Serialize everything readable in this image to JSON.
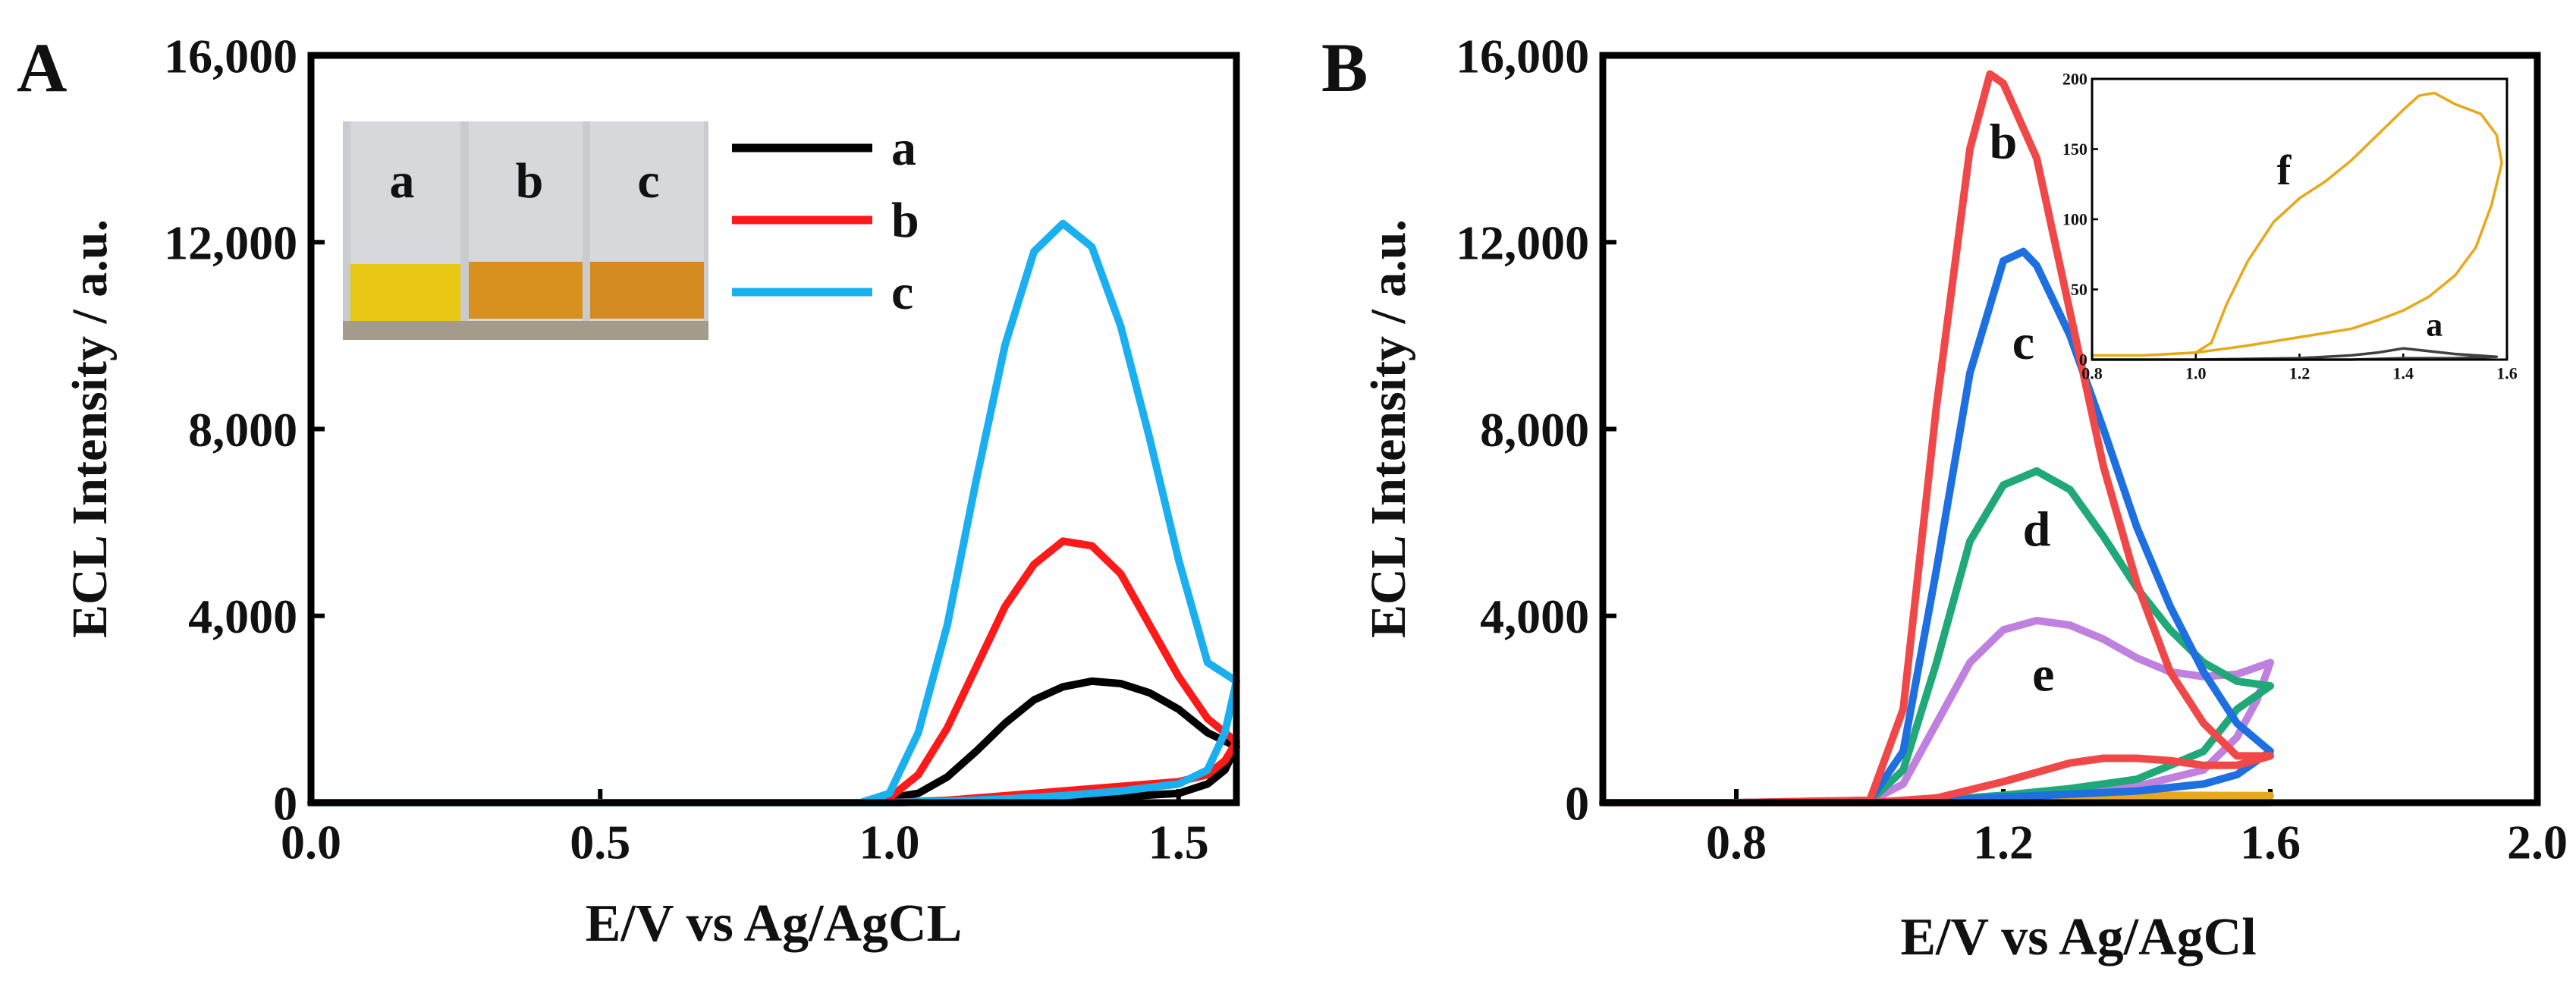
{
  "chart_data": [
    {
      "panel": "A",
      "type": "line",
      "xlabel": "E/V vs Ag/AgCL",
      "ylabel": "ECL Intensity / a.u.",
      "xlim": [
        0,
        1.6
      ],
      "ylim": [
        0,
        16000
      ],
      "xticks": [
        {
          "value": 0,
          "label": "0.0"
        },
        {
          "value": 0.5,
          "label": "0.5"
        },
        {
          "value": 1.0,
          "label": "1.0"
        },
        {
          "value": 1.5,
          "label": "1.5"
        }
      ],
      "yticks": [
        {
          "value": 0,
          "label": "0"
        },
        {
          "value": 4000,
          "label": "4,000"
        },
        {
          "value": 8000,
          "label": "8,000"
        },
        {
          "value": 12000,
          "label": "12,000"
        },
        {
          "value": 16000,
          "label": "16,000"
        }
      ],
      "legend": [
        {
          "name": "a",
          "color": "#000000"
        },
        {
          "name": "b",
          "color": "#ff1a1a"
        },
        {
          "name": "c",
          "color": "#1ab0f0"
        }
      ],
      "inset_photo": {
        "labels": [
          "a",
          "b",
          "c"
        ],
        "colors": [
          "#e8c814",
          "#d8901e",
          "#d48a20"
        ]
      },
      "series": [
        {
          "name": "a",
          "color": "#000000",
          "x": [
            0,
            0.25,
            0.5,
            0.75,
            0.95,
            1.05,
            1.1,
            1.15,
            1.2,
            1.25,
            1.3,
            1.35,
            1.4,
            1.45,
            1.5,
            1.55,
            1.6,
            1.58,
            1.55,
            1.5,
            1.4,
            1.3,
            1.2,
            1.1,
            1.0,
            0.8,
            0.5,
            0.25,
            0
          ],
          "y": [
            0,
            0,
            0,
            0,
            0,
            200,
            550,
            1100,
            1700,
            2200,
            2480,
            2600,
            2550,
            2350,
            2000,
            1500,
            1200,
            700,
            400,
            200,
            130,
            100,
            60,
            20,
            0,
            0,
            0,
            0,
            0
          ]
        },
        {
          "name": "b",
          "color": "#ff1a1a",
          "x": [
            0,
            0.25,
            0.5,
            0.75,
            0.95,
            1.0,
            1.05,
            1.1,
            1.15,
            1.2,
            1.25,
            1.3,
            1.35,
            1.4,
            1.45,
            1.5,
            1.55,
            1.6,
            1.58,
            1.55,
            1.5,
            1.4,
            1.3,
            1.2,
            1.1,
            1.0,
            0.8,
            0.5,
            0.25,
            0
          ],
          "y": [
            0,
            0,
            0,
            0,
            0,
            100,
            600,
            1600,
            2900,
            4200,
            5100,
            5600,
            5500,
            4900,
            3800,
            2700,
            1800,
            1300,
            900,
            600,
            450,
            350,
            250,
            150,
            50,
            0,
            0,
            0,
            0,
            0
          ]
        },
        {
          "name": "c",
          "color": "#1ab0f0",
          "x": [
            0,
            0.25,
            0.5,
            0.75,
            0.95,
            1.0,
            1.05,
            1.1,
            1.15,
            1.2,
            1.25,
            1.3,
            1.35,
            1.4,
            1.45,
            1.5,
            1.55,
            1.6,
            1.58,
            1.55,
            1.5,
            1.4,
            1.3,
            1.2,
            1.1,
            1.0,
            0.8,
            0.5,
            0.25,
            0
          ],
          "y": [
            0,
            0,
            0,
            0,
            0,
            200,
            1500,
            3800,
            6900,
            9800,
            11800,
            12400,
            11900,
            10200,
            7800,
            5200,
            3000,
            2600,
            1500,
            700,
            400,
            250,
            150,
            80,
            30,
            0,
            0,
            0,
            0,
            0
          ]
        }
      ]
    },
    {
      "panel": "B",
      "type": "line",
      "xlabel": "E/V vs Ag/AgCl",
      "ylabel": "ECL Intensity / a.u.",
      "xlim": [
        0.6,
        2.0
      ],
      "ylim": [
        0,
        16000
      ],
      "xticks": [
        {
          "value": 0.8,
          "label": "0.8"
        },
        {
          "value": 1.2,
          "label": "1.2"
        },
        {
          "value": 1.6,
          "label": "1.6"
        },
        {
          "value": 2.0,
          "label": "2.0"
        }
      ],
      "yticks": [
        {
          "value": 0,
          "label": "0"
        },
        {
          "value": 4000,
          "label": "4,000"
        },
        {
          "value": 8000,
          "label": "8,000"
        },
        {
          "value": 12000,
          "label": "12,000"
        },
        {
          "value": 16000,
          "label": "16,000"
        }
      ],
      "curve_labels": [
        {
          "text": "b",
          "x": 1.2,
          "y": 13800
        },
        {
          "text": "c",
          "x": 1.23,
          "y": 9500
        },
        {
          "text": "d",
          "x": 1.25,
          "y": 5500
        },
        {
          "text": "e",
          "x": 1.26,
          "y": 2400
        }
      ],
      "series": [
        {
          "name": "b",
          "color": "#f04848",
          "x": [
            0.6,
            0.8,
            1.0,
            1.05,
            1.1,
            1.15,
            1.18,
            1.2,
            1.25,
            1.3,
            1.35,
            1.4,
            1.45,
            1.5,
            1.55,
            1.6,
            1.55,
            1.5,
            1.45,
            1.4,
            1.35,
            1.3,
            1.2,
            1.1,
            1.0,
            0.8,
            0.6
          ],
          "y": [
            0,
            0,
            50,
            2000,
            8500,
            14000,
            15600,
            15400,
            13800,
            10500,
            7200,
            4700,
            2800,
            1700,
            1000,
            1000,
            800,
            800,
            900,
            950,
            950,
            850,
            450,
            100,
            0,
            0,
            0
          ]
        },
        {
          "name": "c",
          "color": "#1e70e0",
          "x": [
            0.6,
            0.8,
            1.0,
            1.05,
            1.1,
            1.15,
            1.2,
            1.23,
            1.25,
            1.3,
            1.35,
            1.4,
            1.45,
            1.5,
            1.55,
            1.6,
            1.55,
            1.5,
            1.4,
            1.3,
            1.2,
            1.1,
            1.0,
            0.8,
            0.6
          ],
          "y": [
            0,
            0,
            50,
            1100,
            5000,
            9200,
            11600,
            11800,
            11500,
            10000,
            8000,
            5900,
            4200,
            2800,
            1700,
            1100,
            600,
            400,
            250,
            180,
            120,
            40,
            0,
            0,
            0
          ]
        },
        {
          "name": "d",
          "color": "#20a878",
          "x": [
            0.6,
            0.8,
            1.0,
            1.05,
            1.1,
            1.15,
            1.2,
            1.25,
            1.3,
            1.35,
            1.4,
            1.45,
            1.5,
            1.55,
            1.6,
            1.55,
            1.5,
            1.4,
            1.3,
            1.2,
            1.1,
            1.0,
            0.8,
            0.6
          ],
          "y": [
            0,
            0,
            30,
            700,
            3000,
            5600,
            6800,
            7100,
            6700,
            5700,
            4600,
            3700,
            3000,
            2600,
            2500,
            2000,
            1100,
            500,
            300,
            160,
            50,
            0,
            0,
            0
          ]
        },
        {
          "name": "e",
          "color": "#c080e0",
          "x": [
            0.6,
            0.8,
            1.0,
            1.05,
            1.1,
            1.15,
            1.2,
            1.25,
            1.3,
            1.35,
            1.4,
            1.45,
            1.5,
            1.55,
            1.6,
            1.58,
            1.55,
            1.5,
            1.4,
            1.3,
            1.2,
            1.1,
            1.0,
            0.8,
            0.6
          ],
          "y": [
            0,
            0,
            30,
            400,
            1700,
            3000,
            3700,
            3900,
            3800,
            3500,
            3100,
            2800,
            2700,
            2750,
            3000,
            2200,
            1400,
            700,
            350,
            230,
            150,
            50,
            0,
            0,
            0
          ]
        },
        {
          "name": "f",
          "color": "#e8a818",
          "x": [
            0.6,
            0.8,
            1.0,
            1.2,
            1.4,
            1.6,
            1.4,
            1.2,
            1.0,
            0.8,
            0.6
          ],
          "y": [
            0,
            0,
            20,
            100,
            160,
            150,
            40,
            15,
            5,
            0,
            0
          ]
        },
        {
          "name": "a",
          "color": "#808080",
          "x": [
            0.6,
            0.8,
            1.0,
            1.2,
            1.4,
            1.6,
            1.4,
            1.2,
            1.0,
            0.8,
            0.6
          ],
          "y": [
            0,
            0,
            0,
            2,
            6,
            2,
            1,
            0,
            0,
            0,
            0
          ]
        }
      ],
      "inset": {
        "xlim": [
          0.8,
          1.6
        ],
        "ylim": [
          0,
          200
        ],
        "xticks": [
          {
            "value": 0.8,
            "label": "0.8"
          },
          {
            "value": 1.0,
            "label": "1.0"
          },
          {
            "value": 1.2,
            "label": "1.2"
          },
          {
            "value": 1.4,
            "label": "1.4"
          },
          {
            "value": 1.6,
            "label": "1.6"
          }
        ],
        "yticks": [
          {
            "value": 0,
            "label": "0"
          },
          {
            "value": 50,
            "label": "50"
          },
          {
            "value": 100,
            "label": "100"
          },
          {
            "value": 150,
            "label": "150"
          },
          {
            "value": 200,
            "label": "200"
          }
        ],
        "curve_labels": [
          {
            "text": "f",
            "x": 1.17,
            "y": 125
          },
          {
            "text": "a",
            "x": 1.46,
            "y": 17
          }
        ],
        "series": [
          {
            "name": "f",
            "color": "#e8a818",
            "x": [
              0.8,
              0.9,
              0.95,
              1.0,
              1.03,
              1.06,
              1.1,
              1.15,
              1.2,
              1.25,
              1.3,
              1.35,
              1.4,
              1.43,
              1.46,
              1.5,
              1.55,
              1.58,
              1.59,
              1.57,
              1.54,
              1.5,
              1.45,
              1.4,
              1.35,
              1.3,
              1.2,
              1.1,
              1.0,
              0.9,
              0.8
            ],
            "y": [
              3,
              3,
              4,
              5,
              12,
              40,
              70,
              98,
              115,
              127,
              142,
              160,
              178,
              188,
              190,
              182,
              175,
              160,
              140,
              110,
              80,
              60,
              45,
              35,
              28,
              22,
              16,
              10,
              5,
              3,
              3
            ]
          },
          {
            "name": "a",
            "color": "#404040",
            "x": [
              0.8,
              1.0,
              1.2,
              1.3,
              1.35,
              1.4,
              1.45,
              1.5,
              1.58,
              1.5,
              1.4,
              1.3,
              1.2,
              1.0,
              0.8
            ],
            "y": [
              0,
              0,
              1,
              3,
              5,
              8,
              6,
              4,
              2,
              1,
              1,
              0,
              0,
              0,
              0
            ]
          }
        ]
      }
    }
  ],
  "panels": {
    "A": {
      "letter": "A"
    },
    "B": {
      "letter": "B"
    }
  }
}
